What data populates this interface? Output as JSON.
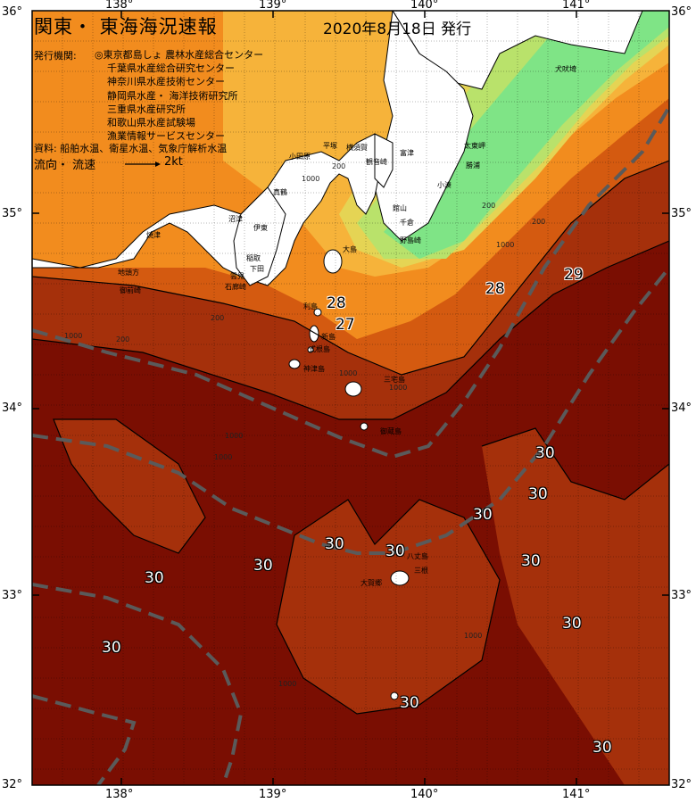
{
  "title": "関東・ 東海海況速報",
  "issued": "2020年8月18日 発行",
  "agencies": {
    "label": "発行機関:",
    "list": [
      "◎東京都島しょ 農林水産総合センター",
      "千葉県水産総合研究センター",
      "神奈川県水産技術センター",
      "静岡県水産・ 海洋技術研究所",
      "三重県水産研究所",
      "和歌山県水産試験場",
      "漁業情報サービスセンター"
    ]
  },
  "sources": "資料: 船舶水温、衛星水温、気象庁解析水温",
  "flow": {
    "label": "流向・ 流速",
    "speed": "2kt"
  },
  "axes": {
    "top": [
      "138°",
      "139°",
      "140°",
      "141°"
    ],
    "bottom": [
      "138°",
      "139°",
      "140°",
      "141°"
    ],
    "left": [
      "36°",
      "35°",
      "34°",
      "33°",
      "32°"
    ],
    "right": [
      "36°",
      "35°",
      "34°",
      "33°",
      "32°"
    ]
  },
  "temp_labels": [
    "28",
    "27",
    "28",
    "29",
    "30",
    "30",
    "30",
    "30",
    "30",
    "30",
    "30",
    "30",
    "30",
    "30",
    "30",
    "30"
  ],
  "place_names": [
    "犬吠埼",
    "太東岬",
    "勝浦",
    "小湊",
    "館山",
    "千倉",
    "野島崎",
    "富津",
    "観音崎",
    "横須賀",
    "平塚",
    "小田原",
    "真鶴",
    "伊東",
    "稲取",
    "下田",
    "雲見",
    "石廊崎",
    "沼津",
    "焼津",
    "地頭方",
    "御前崎",
    "大島",
    "利島",
    "新島",
    "式根島",
    "神津島",
    "三宅島",
    "御蔵島",
    "八丈島",
    "三根",
    "大賀郷"
  ],
  "depth_labels": [
    "200",
    "200",
    "200",
    "200",
    "1000",
    "1000",
    "1000",
    "1000",
    "200",
    "1000",
    "1000",
    "1000",
    "1000",
    "1000"
  ],
  "colors": {
    "land": "#ffffff",
    "t30": "#7a0e02",
    "t29": "#a5300b",
    "t28": "#d45a10",
    "t27": "#f28c1e",
    "t26": "#f6b33a",
    "t25": "#e5d454",
    "t24": "#b9e26b",
    "t23": "#7fe486",
    "kuroshio_axis": "#5a5a5a"
  }
}
